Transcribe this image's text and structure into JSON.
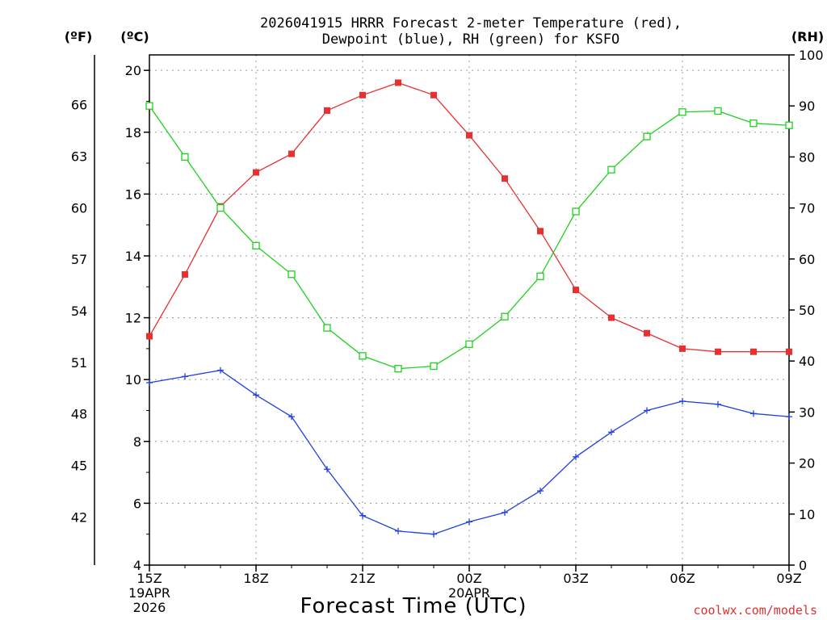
{
  "chart_data": {
    "type": "line",
    "title": [
      "2026041915 HRRR Forecast 2-meter Temperature (red),",
      "Dewpoint (blue), RH (green) for KSFO"
    ],
    "xlabel": "Forecast Time (UTC)",
    "credit": "coolwx.com/models",
    "units": {
      "left_f": "(ºF)",
      "left_c": "(ºC)",
      "right": "(RH)"
    },
    "x_ticks": [
      {
        "hour": 0,
        "lines": [
          "15Z",
          "19APR",
          "2026"
        ]
      },
      {
        "hour": 3,
        "lines": [
          "18Z"
        ]
      },
      {
        "hour": 6,
        "lines": [
          "21Z"
        ]
      },
      {
        "hour": 9,
        "lines": [
          "00Z",
          "20APR"
        ]
      },
      {
        "hour": 12,
        "lines": [
          "03Z"
        ]
      },
      {
        "hour": 15,
        "lines": [
          "06Z"
        ]
      },
      {
        "hour": 18,
        "lines": [
          "09Z"
        ]
      }
    ],
    "xlim": [
      0,
      18
    ],
    "c_axis": {
      "ylim": [
        4,
        20.5
      ],
      "ticks": [
        4,
        6,
        8,
        10,
        12,
        14,
        16,
        18,
        20
      ]
    },
    "f_axis": {
      "ticks": [
        42,
        45,
        48,
        51,
        54,
        57,
        60,
        63,
        66
      ]
    },
    "rh_axis": {
      "ylim": [
        0,
        100
      ],
      "ticks": [
        0,
        10,
        20,
        30,
        40,
        50,
        60,
        70,
        80,
        90,
        100
      ]
    },
    "grid": true,
    "series": [
      {
        "name": "Temperature",
        "axis": "c",
        "color": "#e83030",
        "marker": "filled-square",
        "values": [
          11.4,
          13.4,
          15.6,
          16.7,
          17.3,
          18.7,
          19.2,
          19.6,
          19.2,
          17.9,
          16.5,
          14.8,
          12.9,
          12.0,
          11.5,
          11.0,
          10.9,
          10.9,
          10.9
        ]
      },
      {
        "name": "Dewpoint",
        "axis": "c",
        "color": "#2040e0",
        "marker": "plus",
        "values": [
          9.9,
          10.1,
          10.3,
          9.5,
          8.8,
          7.1,
          5.6,
          5.1,
          5.0,
          5.4,
          5.7,
          6.4,
          7.5,
          8.3,
          9.0,
          9.3,
          9.2,
          8.9,
          8.8
        ]
      },
      {
        "name": "RH",
        "axis": "rh",
        "color": "#20d020",
        "marker": "open-square",
        "values": [
          90,
          80,
          70,
          62.6,
          57,
          46.5,
          41,
          38.5,
          39,
          43.3,
          48.7,
          56.6,
          69.3,
          77.5,
          84,
          88.8,
          89,
          86.6,
          86.2
        ]
      }
    ]
  }
}
